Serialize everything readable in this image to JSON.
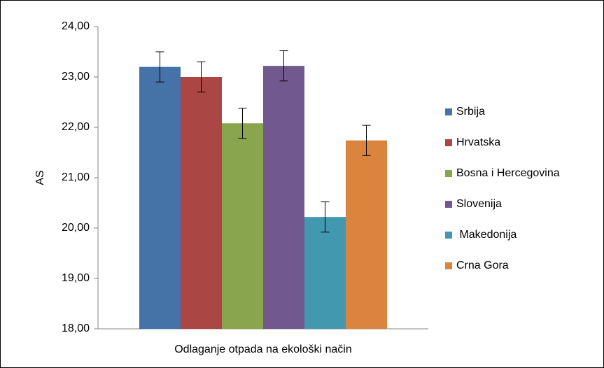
{
  "chart_data": {
    "type": "bar",
    "categories": [
      "Odlaganje otpada na ekološki način"
    ],
    "ylabel": "AS",
    "ylim": [
      18,
      24
    ],
    "yticks": [
      {
        "value": 18,
        "label": "18,00"
      },
      {
        "value": 19,
        "label": "19,00"
      },
      {
        "value": 20,
        "label": "20,00"
      },
      {
        "value": 21,
        "label": "21,00"
      },
      {
        "value": 22,
        "label": "22,00"
      },
      {
        "value": 23,
        "label": "23,00"
      },
      {
        "value": 24,
        "label": "24,00"
      }
    ],
    "grid": false,
    "legend": "right",
    "series": [
      {
        "name": "Srbija",
        "color": "#4572a7",
        "values": [
          23.2
        ],
        "errors": [
          0.3
        ]
      },
      {
        "name": "Hrvatska",
        "color": "#aa4643",
        "values": [
          23.0
        ],
        "errors": [
          0.3
        ]
      },
      {
        "name": "Bosna i Hercegovina",
        "color": "#89a54e",
        "values": [
          22.08
        ],
        "errors": [
          0.3
        ]
      },
      {
        "name": "Slovenija",
        "color": "#71588f",
        "values": [
          23.22
        ],
        "errors": [
          0.3
        ]
      },
      {
        "name": " Makedonija",
        "color": "#4198af",
        "values": [
          20.22
        ],
        "errors": [
          0.3
        ]
      },
      {
        "name": "Crna Gora",
        "color": "#db843d",
        "values": [
          21.74
        ],
        "errors": [
          0.3
        ]
      }
    ]
  }
}
